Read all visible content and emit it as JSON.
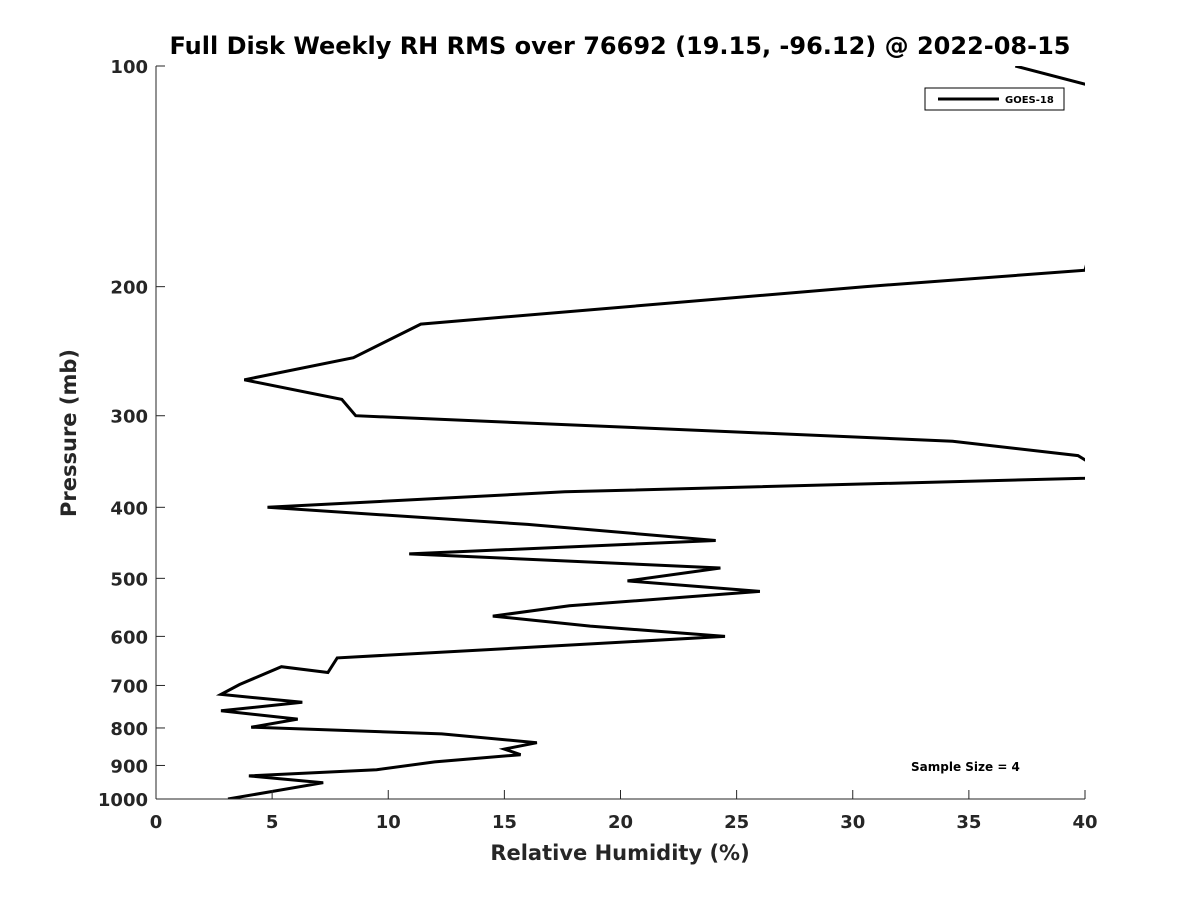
{
  "chart_data": {
    "type": "line",
    "title": "Full Disk Weekly RH RMS over 76692 (19.15, -96.12) @ 2022-08-15",
    "xlabel": "Relative Humidity (%)",
    "ylabel": "Pressure (mb)",
    "xlim": [
      0,
      40
    ],
    "ylim": [
      100,
      1000
    ],
    "yscale": "log",
    "yreversed": true,
    "grid": false,
    "x_ticks": [
      0,
      5,
      10,
      15,
      20,
      25,
      30,
      35,
      40
    ],
    "y_ticks": [
      100,
      200,
      300,
      400,
      500,
      600,
      700,
      800,
      900,
      1000
    ],
    "legend": {
      "placement": "top-right",
      "entries": [
        "GOES-18"
      ]
    },
    "annotation": "Sample Size = 4",
    "series": [
      {
        "name": "GOES-18",
        "color": "#000000",
        "points": [
          [
            37.0,
            100
          ],
          [
            42.0,
            110
          ],
          [
            40.0,
            190
          ],
          [
            30.5,
            200
          ],
          [
            11.4,
            225
          ],
          [
            8.5,
            250
          ],
          [
            3.8,
            268
          ],
          [
            8.0,
            285
          ],
          [
            8.6,
            300
          ],
          [
            34.3,
            325
          ],
          [
            39.7,
            340
          ],
          [
            41.0,
            360
          ],
          [
            40.0,
            365
          ],
          [
            17.6,
            381
          ],
          [
            4.8,
            400
          ],
          [
            16.0,
            422
          ],
          [
            24.1,
            444
          ],
          [
            10.9,
            463
          ],
          [
            24.3,
            484
          ],
          [
            20.3,
            504
          ],
          [
            26.0,
            521
          ],
          [
            17.8,
            545
          ],
          [
            14.5,
            563
          ],
          [
            18.7,
            581
          ],
          [
            24.5,
            600
          ],
          [
            16.5,
            620
          ],
          [
            7.8,
            642
          ],
          [
            7.4,
            672
          ],
          [
            5.4,
            660
          ],
          [
            3.6,
            698
          ],
          [
            2.8,
            720
          ],
          [
            6.3,
            738
          ],
          [
            2.8,
            758
          ],
          [
            6.1,
            778
          ],
          [
            4.1,
            798
          ],
          [
            12.3,
            815
          ],
          [
            16.4,
            838
          ],
          [
            15.0,
            855
          ],
          [
            15.7,
            870
          ],
          [
            12.0,
            890
          ],
          [
            9.5,
            912
          ],
          [
            4.0,
            930
          ],
          [
            7.2,
            950
          ],
          [
            3.1,
            1000
          ]
        ]
      }
    ]
  }
}
